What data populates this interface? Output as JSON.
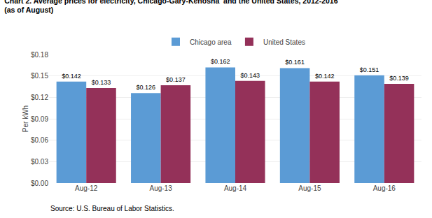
{
  "chart_data": {
    "type": "bar",
    "title": "Chart 2. Average prices for electricity, Chicago-Gary-Kenosha  and the United States, 2012-2016",
    "subtitle": "(as of August)",
    "y_label": "Per kWh",
    "annotations": [
      "Source: U.S. Bureau of Labor Statistics."
    ],
    "categories": [
      "Aug-12",
      "Aug-13",
      "Aug-14",
      "Aug-15",
      "Aug-16"
    ],
    "series": [
      {
        "name": "Chicago area",
        "color": "#5B9BD5",
        "values": [
          0.142,
          0.126,
          0.162,
          0.161,
          0.151
        ],
        "value_labels": [
          "$0.142",
          "$0.126",
          "$0.162",
          "$0.161",
          "$0.151"
        ]
      },
      {
        "name": "United States",
        "color": "#943159",
        "values": [
          0.133,
          0.137,
          0.143,
          0.142,
          0.139
        ],
        "value_labels": [
          "$0.133",
          "$0.137",
          "$0.143",
          "$0.142",
          "$0.139"
        ]
      }
    ],
    "ylim": [
      0,
      0.18
    ],
    "yticks": [
      {
        "value": 0.0,
        "label": "$0.00"
      },
      {
        "value": 0.03,
        "label": "$0.03"
      },
      {
        "value": 0.06,
        "label": "$0.06"
      },
      {
        "value": 0.09,
        "label": "$0.09"
      },
      {
        "value": 0.12,
        "label": "$0.12"
      },
      {
        "value": 0.15,
        "label": "$0.15"
      },
      {
        "value": 0.18,
        "label": "$0.18"
      }
    ],
    "grid": true,
    "legend": "top",
    "data_labels": true
  }
}
